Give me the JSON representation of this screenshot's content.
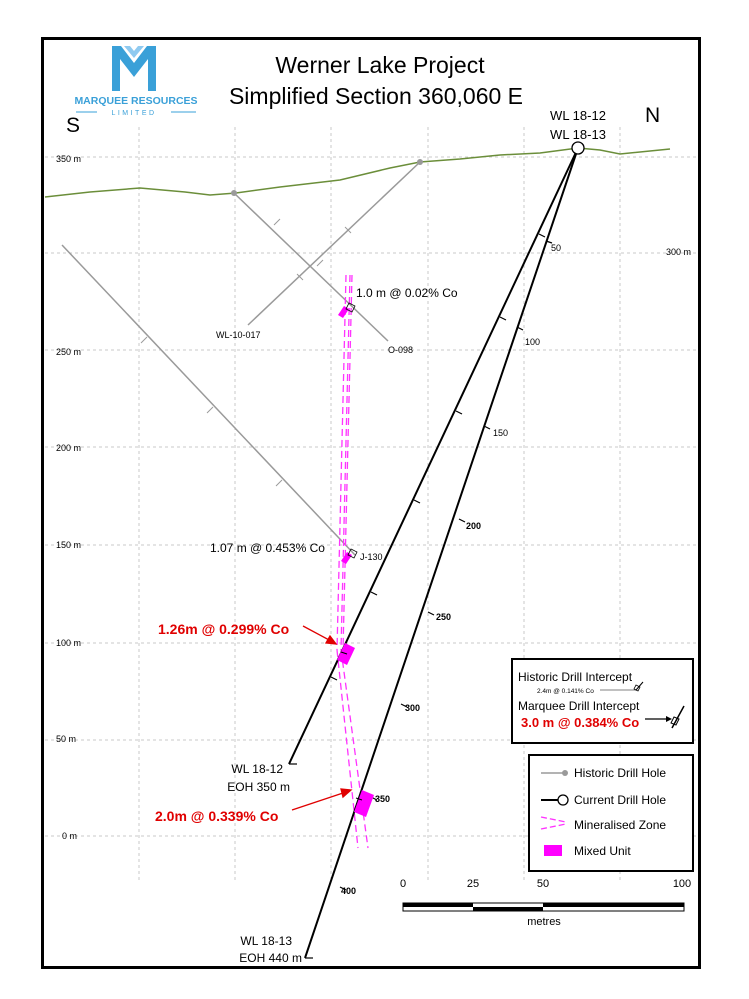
{
  "header": {
    "title_line1": "Werner Lake Project",
    "title_line2": "Simplified Section 360,060 E"
  },
  "logo": {
    "company": "MARQUEE RESOURCES",
    "subtitle": "LIMITED",
    "brand_color": "#3aa0d8"
  },
  "orientation": {
    "left": "S",
    "right": "N"
  },
  "elevation_labels": [
    "350 m",
    "300 m",
    "250 m",
    "200 m",
    "150 m",
    "100 m",
    "50 m",
    "0 m"
  ],
  "holes": {
    "collar_label_1": "WL 18-12",
    "collar_label_2": "WL 18-13",
    "wl1812_eoh_1": "WL 18-12",
    "wl1812_eoh_2": "EOH 350 m",
    "wl1813_eoh_1": "WL 18-13",
    "wl1813_eoh_2": "EOH 440 m",
    "historic_1": "WL-10-017",
    "historic_2": "O-098",
    "historic_3": "J-130"
  },
  "depth_ticks_1812": [
    "50",
    "100",
    "150",
    "200",
    "250",
    "300",
    "350",
    "400"
  ],
  "intercepts": {
    "historic_1": "1.0 m @ 0.02% Co",
    "historic_2": "1.07 m @ 0.453% Co",
    "marquee_1": "1.26m @ 0.299% Co",
    "marquee_2": "2.0m @ 0.339% Co"
  },
  "key_box": {
    "historic_title": "Historic Drill Intercept",
    "historic_example": "2.4m @ 0.141% Co",
    "marquee_title": "Marquee Drill Intercept",
    "marquee_example": "3.0 m @ 0.384% Co"
  },
  "legend": {
    "historic_hole": "Historic Drill Hole",
    "current_hole": "Current Drill Hole",
    "mineralised_zone": "Mineralised Zone",
    "mixed_unit": "Mixed Unit"
  },
  "scale_bar": {
    "ticks": [
      "0",
      "25",
      "50",
      "100"
    ],
    "unit": "metres"
  },
  "colors": {
    "topography": "#6b8e3a",
    "historic_hole": "#9a9a9a",
    "mixed_unit": "#ff00ff",
    "highlight": "#e00000"
  }
}
